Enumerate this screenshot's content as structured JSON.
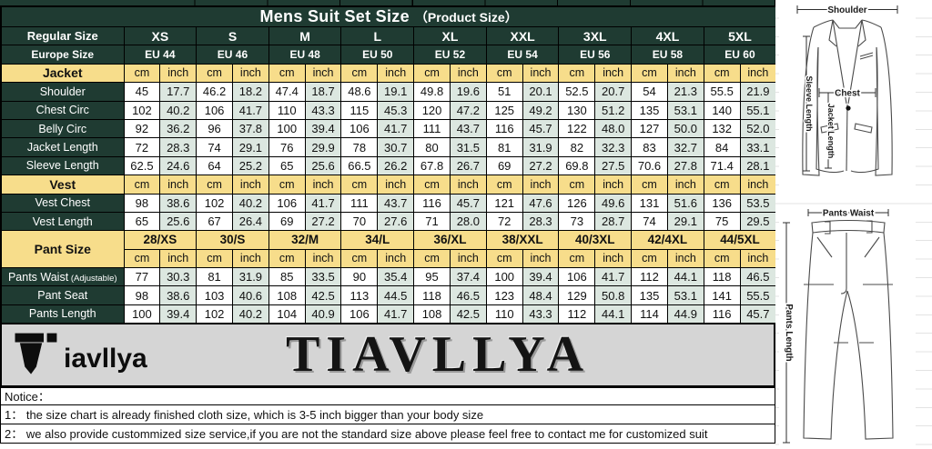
{
  "title": {
    "main": "Mens Suit Set Size",
    "sub": "（Product Size）"
  },
  "header": {
    "regular_label": "Regular Size",
    "europe_label": "Europe Size",
    "regular_sizes": [
      "XS",
      "S",
      "M",
      "L",
      "XL",
      "XXL",
      "3XL",
      "4XL",
      "5XL"
    ],
    "europe_sizes": [
      "EU 44",
      "EU 46",
      "EU 48",
      "EU 50",
      "EU 52",
      "EU 54",
      "EU 56",
      "EU 58",
      "EU 60"
    ],
    "cm_label": "cm",
    "inch_label": "inch"
  },
  "sections": [
    {
      "name": "Jacket",
      "rows": [
        {
          "label": "Shoulder",
          "cm": [
            "45",
            "46.2",
            "47.4",
            "48.6",
            "49.8",
            "51",
            "52.5",
            "54",
            "55.5"
          ],
          "inch": [
            "17.7",
            "18.2",
            "18.7",
            "19.1",
            "19.6",
            "20.1",
            "20.7",
            "21.3",
            "21.9"
          ]
        },
        {
          "label": "Chest Circ",
          "cm": [
            "102",
            "106",
            "110",
            "115",
            "120",
            "125",
            "130",
            "135",
            "140"
          ],
          "inch": [
            "40.2",
            "41.7",
            "43.3",
            "45.3",
            "47.2",
            "49.2",
            "51.2",
            "53.1",
            "55.1"
          ]
        },
        {
          "label": "Belly Circ",
          "cm": [
            "92",
            "96",
            "100",
            "106",
            "111",
            "116",
            "122",
            "127",
            "132"
          ],
          "inch": [
            "36.2",
            "37.8",
            "39.4",
            "41.7",
            "43.7",
            "45.7",
            "48.0",
            "50.0",
            "52.0"
          ]
        },
        {
          "label": "Jacket Length",
          "cm": [
            "72",
            "74",
            "76",
            "78",
            "80",
            "81",
            "82",
            "83",
            "84"
          ],
          "inch": [
            "28.3",
            "29.1",
            "29.9",
            "30.7",
            "31.5",
            "31.9",
            "32.3",
            "32.7",
            "33.1"
          ]
        },
        {
          "label": "Sleeve Length",
          "cm": [
            "62.5",
            "64",
            "65",
            "66.5",
            "67.8",
            "69",
            "69.8",
            "70.6",
            "71.4"
          ],
          "inch": [
            "24.6",
            "25.2",
            "25.6",
            "26.2",
            "26.7",
            "27.2",
            "27.5",
            "27.8",
            "28.1"
          ]
        }
      ]
    },
    {
      "name": "Vest",
      "rows": [
        {
          "label": "Vest Chest",
          "cm": [
            "98",
            "102",
            "106",
            "111",
            "116",
            "121",
            "126",
            "131",
            "136"
          ],
          "inch": [
            "38.6",
            "40.2",
            "41.7",
            "43.7",
            "45.7",
            "47.6",
            "49.6",
            "51.6",
            "53.5"
          ]
        },
        {
          "label": "Vest Length",
          "cm": [
            "65",
            "67",
            "69",
            "70",
            "71",
            "72",
            "73",
            "74",
            "75"
          ],
          "inch": [
            "25.6",
            "26.4",
            "27.2",
            "27.6",
            "28.0",
            "28.3",
            "28.7",
            "29.1",
            "29.5"
          ]
        }
      ]
    },
    {
      "name": "Pant Size",
      "sizes": [
        "28/XS",
        "30/S",
        "32/M",
        "34/L",
        "36/XL",
        "38/XXL",
        "40/3XL",
        "42/4XL",
        "44/5XL"
      ],
      "rows": [
        {
          "label": "Pants Waist",
          "note": "(Adjustable)",
          "cm": [
            "77",
            "81",
            "85",
            "90",
            "95",
            "100",
            "106",
            "112",
            "118"
          ],
          "inch": [
            "30.3",
            "31.9",
            "33.5",
            "35.4",
            "37.4",
            "39.4",
            "41.7",
            "44.1",
            "46.5"
          ]
        },
        {
          "label": "Pant Seat",
          "cm": [
            "98",
            "103",
            "108",
            "113",
            "118",
            "123",
            "129",
            "135",
            "141"
          ],
          "inch": [
            "38.6",
            "40.6",
            "42.5",
            "44.5",
            "46.5",
            "48.4",
            "50.8",
            "53.1",
            "55.5"
          ]
        },
        {
          "label": "Pants Length",
          "cm": [
            "100",
            "102",
            "104",
            "106",
            "108",
            "110",
            "112",
            "114",
            "116"
          ],
          "inch": [
            "39.4",
            "40.2",
            "40.9",
            "41.7",
            "42.5",
            "43.3",
            "44.1",
            "44.9",
            "45.7"
          ]
        }
      ]
    }
  ],
  "brand": {
    "logo_text": "iavllya",
    "watermark": "TIAVLLYA"
  },
  "notice": {
    "header": "Notice：",
    "lines": [
      "1：  the size chart is already finished cloth size, which is 3-5 inch bigger than your body size",
      "2：  we also provide custommized size service,if you are not the standard size above please feel free to contact me for customized suit"
    ]
  },
  "diagrams": {
    "jacket": {
      "shoulder": "Shoulder",
      "chest": "Chest",
      "jacket_length": "Jacket Length",
      "sleeve_length": "Sleeve Length"
    },
    "pants": {
      "waist": "Pants Waist",
      "length": "Pants Length"
    }
  },
  "colors": {
    "dark_green": "#1f3b32",
    "header_yellow": "#f7dd8b",
    "inch_cell": "#dce7e0",
    "banner_gray": "#d5d5d5",
    "border_black": "#000000"
  }
}
